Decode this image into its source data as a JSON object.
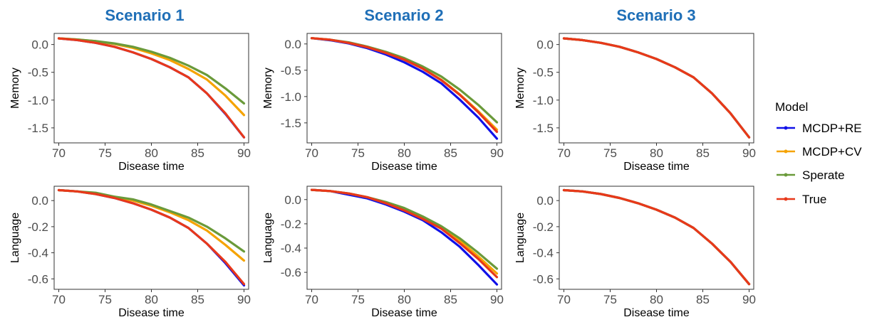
{
  "figure": {
    "scenario_titles": [
      "Scenario 1",
      "Scenario 2",
      "Scenario 3"
    ],
    "x_label": "Disease time",
    "legend": {
      "title": "Model",
      "entries": [
        {
          "label": "MCDP+RE",
          "color": "#1010e8"
        },
        {
          "label": "MCDP+CV",
          "color": "#f5a300"
        },
        {
          "label": "Sperate",
          "color": "#6a9a3a"
        },
        {
          "label": "True",
          "color": "#e8381a"
        }
      ]
    }
  },
  "chart_data": [
    {
      "type": "line",
      "scenario": "Scenario 1",
      "ylabel": "Memory",
      "xlabel": "Disease time",
      "xlim": [
        69.5,
        90.5
      ],
      "ylim": [
        -1.77,
        0.2
      ],
      "x_ticks": [
        70,
        75,
        80,
        85,
        90
      ],
      "x_tick_labels": [
        "70",
        "75",
        "80",
        "85",
        "90"
      ],
      "y_ticks": [
        0.0,
        -0.5,
        -1.0,
        -1.5
      ],
      "y_tick_labels": [
        "0.0",
        "-0.5",
        "-1.0",
        "-1.5"
      ],
      "series": [
        {
          "name": "MCDP+RE",
          "color": "#1010e8",
          "x": [
            70,
            72,
            74,
            76,
            78,
            80,
            82,
            84,
            86,
            88,
            90
          ],
          "y": [
            0.11,
            0.08,
            0.03,
            -0.04,
            -0.14,
            -0.26,
            -0.41,
            -0.59,
            -0.88,
            -1.25,
            -1.67
          ]
        },
        {
          "name": "MCDP+CV",
          "color": "#f5a300",
          "x": [
            70,
            72,
            74,
            76,
            78,
            80,
            82,
            84,
            86,
            88,
            90
          ],
          "y": [
            0.11,
            0.09,
            0.06,
            0.01,
            -0.06,
            -0.16,
            -0.28,
            -0.44,
            -0.63,
            -0.92,
            -1.27
          ]
        },
        {
          "name": "Sperate",
          "color": "#6a9a3a",
          "x": [
            70,
            72,
            74,
            76,
            78,
            80,
            82,
            84,
            86,
            88,
            90
          ],
          "y": [
            0.11,
            0.09,
            0.06,
            0.02,
            -0.04,
            -0.13,
            -0.24,
            -0.38,
            -0.55,
            -0.79,
            -1.06
          ]
        },
        {
          "name": "True",
          "color": "#e8381a",
          "x": [
            70,
            72,
            74,
            76,
            78,
            80,
            82,
            84,
            86,
            88,
            90
          ],
          "y": [
            0.11,
            0.08,
            0.03,
            -0.04,
            -0.14,
            -0.26,
            -0.41,
            -0.59,
            -0.88,
            -1.24,
            -1.67
          ]
        }
      ]
    },
    {
      "type": "line",
      "scenario": "Scenario 2",
      "ylabel": "Memory",
      "xlabel": "Disease time",
      "xlim": [
        69.5,
        90.5
      ],
      "ylim": [
        -1.88,
        0.2
      ],
      "x_ticks": [
        70,
        75,
        80,
        85,
        90
      ],
      "x_tick_labels": [
        "70",
        "75",
        "80",
        "85",
        "90"
      ],
      "y_ticks": [
        0.0,
        -0.5,
        -1.0,
        -1.5
      ],
      "y_tick_labels": [
        "0.0",
        "-0.5",
        "-1.0",
        "-1.5"
      ],
      "series": [
        {
          "name": "MCDP+RE",
          "color": "#1010e8",
          "x": [
            70,
            72,
            74,
            76,
            78,
            80,
            82,
            84,
            86,
            88,
            90
          ],
          "y": [
            0.11,
            0.07,
            0.01,
            -0.08,
            -0.2,
            -0.35,
            -0.53,
            -0.75,
            -1.06,
            -1.4,
            -1.8
          ]
        },
        {
          "name": "MCDP+CV",
          "color": "#f5a300",
          "x": [
            70,
            72,
            74,
            76,
            78,
            80,
            82,
            84,
            86,
            88,
            90
          ],
          "y": [
            0.11,
            0.08,
            0.02,
            -0.06,
            -0.17,
            -0.3,
            -0.47,
            -0.68,
            -0.96,
            -1.28,
            -1.63
          ]
        },
        {
          "name": "Sperate",
          "color": "#6a9a3a",
          "x": [
            70,
            72,
            74,
            76,
            78,
            80,
            82,
            84,
            86,
            88,
            90
          ],
          "y": [
            0.11,
            0.08,
            0.03,
            -0.05,
            -0.15,
            -0.27,
            -0.43,
            -0.62,
            -0.87,
            -1.16,
            -1.49
          ]
        },
        {
          "name": "True",
          "color": "#e8381a",
          "x": [
            70,
            72,
            74,
            76,
            78,
            80,
            82,
            84,
            86,
            88,
            90
          ],
          "y": [
            0.11,
            0.08,
            0.02,
            -0.06,
            -0.17,
            -0.3,
            -0.47,
            -0.69,
            -0.97,
            -1.3,
            -1.67
          ]
        }
      ]
    },
    {
      "type": "line",
      "scenario": "Scenario 3",
      "ylabel": "Memory",
      "xlabel": "Disease time",
      "xlim": [
        69.5,
        90.5
      ],
      "ylim": [
        -1.77,
        0.2
      ],
      "x_ticks": [
        70,
        75,
        80,
        85,
        90
      ],
      "x_tick_labels": [
        "70",
        "75",
        "80",
        "85",
        "90"
      ],
      "y_ticks": [
        0.0,
        -0.5,
        -1.0,
        -1.5
      ],
      "y_tick_labels": [
        "0.0",
        "-0.5",
        "-1.0",
        "-1.5"
      ],
      "series": [
        {
          "name": "MCDP+RE",
          "color": "#1010e8",
          "x": [
            70,
            72,
            74,
            76,
            78,
            80,
            82,
            84,
            86,
            88,
            90
          ],
          "y": [
            0.11,
            0.08,
            0.03,
            -0.04,
            -0.14,
            -0.26,
            -0.41,
            -0.59,
            -0.88,
            -1.24,
            -1.67
          ]
        },
        {
          "name": "MCDP+CV",
          "color": "#f5a300",
          "x": [
            70,
            72,
            74,
            76,
            78,
            80,
            82,
            84,
            86,
            88,
            90
          ],
          "y": [
            0.11,
            0.08,
            0.03,
            -0.04,
            -0.14,
            -0.26,
            -0.41,
            -0.59,
            -0.88,
            -1.24,
            -1.67
          ]
        },
        {
          "name": "Sperate",
          "color": "#6a9a3a",
          "x": [
            70,
            72,
            74,
            76,
            78,
            80,
            82,
            84,
            86,
            88,
            90
          ],
          "y": [
            0.11,
            0.08,
            0.03,
            -0.04,
            -0.14,
            -0.26,
            -0.41,
            -0.59,
            -0.88,
            -1.24,
            -1.67
          ]
        },
        {
          "name": "True",
          "color": "#e8381a",
          "x": [
            70,
            72,
            74,
            76,
            78,
            80,
            82,
            84,
            86,
            88,
            90
          ],
          "y": [
            0.11,
            0.08,
            0.03,
            -0.04,
            -0.14,
            -0.26,
            -0.41,
            -0.59,
            -0.88,
            -1.24,
            -1.67
          ]
        }
      ]
    },
    {
      "type": "line",
      "scenario": "Scenario 1",
      "ylabel": "Language",
      "xlabel": "Disease time",
      "xlim": [
        69.5,
        90.5
      ],
      "ylim": [
        -0.68,
        0.11
      ],
      "x_ticks": [
        70,
        75,
        80,
        85,
        90
      ],
      "x_tick_labels": [
        "70",
        "75",
        "80",
        "85",
        "90"
      ],
      "y_ticks": [
        0.0,
        -0.2,
        -0.4,
        -0.6
      ],
      "y_tick_labels": [
        "0.0",
        "-0.2",
        "-0.4",
        "-0.6"
      ],
      "series": [
        {
          "name": "MCDP+RE",
          "color": "#1010e8",
          "x": [
            70,
            72,
            74,
            76,
            78,
            80,
            82,
            84,
            86,
            88,
            90
          ],
          "y": [
            0.08,
            0.07,
            0.05,
            0.02,
            -0.02,
            -0.07,
            -0.13,
            -0.21,
            -0.33,
            -0.48,
            -0.65
          ]
        },
        {
          "name": "MCDP+CV",
          "color": "#f5a300",
          "x": [
            70,
            72,
            74,
            76,
            78,
            80,
            82,
            84,
            86,
            88,
            90
          ],
          "y": [
            0.08,
            0.07,
            0.05,
            0.03,
            0.0,
            -0.04,
            -0.09,
            -0.15,
            -0.23,
            -0.34,
            -0.46
          ]
        },
        {
          "name": "Sperate",
          "color": "#6a9a3a",
          "x": [
            70,
            72,
            74,
            76,
            78,
            80,
            82,
            84,
            86,
            88,
            90
          ],
          "y": [
            0.08,
            0.07,
            0.06,
            0.03,
            0.01,
            -0.03,
            -0.08,
            -0.13,
            -0.2,
            -0.29,
            -0.39
          ]
        },
        {
          "name": "True",
          "color": "#e8381a",
          "x": [
            70,
            72,
            74,
            76,
            78,
            80,
            82,
            84,
            86,
            88,
            90
          ],
          "y": [
            0.08,
            0.07,
            0.05,
            0.02,
            -0.02,
            -0.07,
            -0.13,
            -0.21,
            -0.33,
            -0.47,
            -0.64
          ]
        }
      ]
    },
    {
      "type": "line",
      "scenario": "Scenario 2",
      "ylabel": "Language",
      "xlabel": "Disease time",
      "xlim": [
        69.5,
        90.5
      ],
      "ylim": [
        -0.74,
        0.11
      ],
      "x_ticks": [
        70,
        75,
        80,
        85,
        90
      ],
      "x_tick_labels": [
        "70",
        "75",
        "80",
        "85",
        "90"
      ],
      "y_ticks": [
        0.0,
        -0.2,
        -0.4,
        -0.6
      ],
      "y_tick_labels": [
        "0.0",
        "-0.2",
        "-0.4",
        "-0.6"
      ],
      "series": [
        {
          "name": "MCDP+RE",
          "color": "#1010e8",
          "x": [
            70,
            72,
            74,
            76,
            78,
            80,
            82,
            84,
            86,
            88,
            90
          ],
          "y": [
            0.08,
            0.07,
            0.04,
            0.01,
            -0.04,
            -0.1,
            -0.17,
            -0.27,
            -0.39,
            -0.54,
            -0.7
          ]
        },
        {
          "name": "MCDP+CV",
          "color": "#f5a300",
          "x": [
            70,
            72,
            74,
            76,
            78,
            80,
            82,
            84,
            86,
            88,
            90
          ],
          "y": [
            0.08,
            0.07,
            0.05,
            0.02,
            -0.03,
            -0.08,
            -0.15,
            -0.23,
            -0.34,
            -0.47,
            -0.61
          ]
        },
        {
          "name": "Sperate",
          "color": "#6a9a3a",
          "x": [
            70,
            72,
            74,
            76,
            78,
            80,
            82,
            84,
            86,
            88,
            90
          ],
          "y": [
            0.08,
            0.07,
            0.05,
            0.02,
            -0.02,
            -0.07,
            -0.14,
            -0.22,
            -0.32,
            -0.44,
            -0.57
          ]
        },
        {
          "name": "True",
          "color": "#e8381a",
          "x": [
            70,
            72,
            74,
            76,
            78,
            80,
            82,
            84,
            86,
            88,
            90
          ],
          "y": [
            0.08,
            0.07,
            0.05,
            0.02,
            -0.03,
            -0.09,
            -0.16,
            -0.24,
            -0.36,
            -0.49,
            -0.64
          ]
        }
      ]
    },
    {
      "type": "line",
      "scenario": "Scenario 3",
      "ylabel": "Language",
      "xlabel": "Disease time",
      "xlim": [
        69.5,
        90.5
      ],
      "ylim": [
        -0.68,
        0.11
      ],
      "x_ticks": [
        70,
        75,
        80,
        85,
        90
      ],
      "x_tick_labels": [
        "70",
        "75",
        "80",
        "85",
        "90"
      ],
      "y_ticks": [
        0.0,
        -0.2,
        -0.4,
        -0.6
      ],
      "y_tick_labels": [
        "0.0",
        "-0.2",
        "-0.4",
        "-0.6"
      ],
      "series": [
        {
          "name": "MCDP+RE",
          "color": "#1010e8",
          "x": [
            70,
            72,
            74,
            76,
            78,
            80,
            82,
            84,
            86,
            88,
            90
          ],
          "y": [
            0.08,
            0.07,
            0.05,
            0.02,
            -0.02,
            -0.07,
            -0.13,
            -0.21,
            -0.33,
            -0.47,
            -0.64
          ]
        },
        {
          "name": "MCDP+CV",
          "color": "#f5a300",
          "x": [
            70,
            72,
            74,
            76,
            78,
            80,
            82,
            84,
            86,
            88,
            90
          ],
          "y": [
            0.08,
            0.07,
            0.05,
            0.02,
            -0.02,
            -0.07,
            -0.13,
            -0.21,
            -0.33,
            -0.47,
            -0.64
          ]
        },
        {
          "name": "Sperate",
          "color": "#6a9a3a",
          "x": [
            70,
            72,
            74,
            76,
            78,
            80,
            82,
            84,
            86,
            88,
            90
          ],
          "y": [
            0.08,
            0.07,
            0.05,
            0.02,
            -0.02,
            -0.07,
            -0.13,
            -0.21,
            -0.33,
            -0.47,
            -0.64
          ]
        },
        {
          "name": "True",
          "color": "#e8381a",
          "x": [
            70,
            72,
            74,
            76,
            78,
            80,
            82,
            84,
            86,
            88,
            90
          ],
          "y": [
            0.08,
            0.07,
            0.05,
            0.02,
            -0.02,
            -0.07,
            -0.13,
            -0.21,
            -0.33,
            -0.47,
            -0.64
          ]
        }
      ]
    }
  ]
}
